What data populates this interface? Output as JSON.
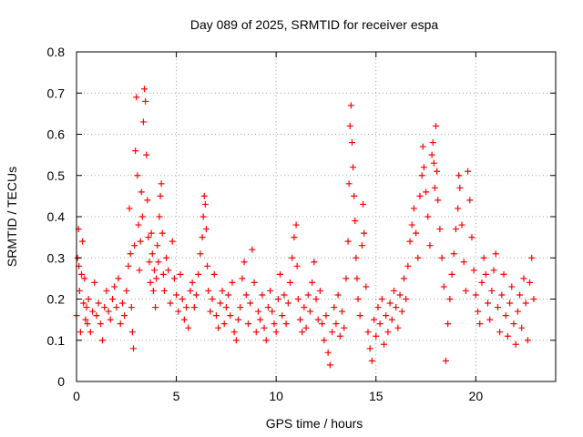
{
  "chart_data": {
    "type": "scatter",
    "title": "Day 089 of 2025, SRMTID for receiver espa",
    "xlabel": "GPS time / hours",
    "ylabel": "SRMTID / TECUs",
    "xlim": [
      0,
      24
    ],
    "ylim": [
      0,
      0.8
    ],
    "grid": true,
    "marker": "+",
    "color": "#ff0000",
    "x_ticks": [
      0,
      5,
      10,
      15,
      20
    ],
    "x_tick_labels": [
      "0",
      "5",
      "10",
      "15",
      "20"
    ],
    "y_ticks": [
      0,
      0.1,
      0.2,
      0.3,
      0.4,
      0.5,
      0.6,
      0.7,
      0.8
    ],
    "y_tick_labels": [
      "0",
      "0.1",
      "0.2",
      "0.3",
      "0.4",
      "0.5",
      "0.6",
      "0.7",
      "0.8"
    ],
    "series": [
      {
        "name": "SRMTID",
        "points": [
          [
            0.0,
            0.16
          ],
          [
            0.05,
            0.3
          ],
          [
            0.1,
            0.37
          ],
          [
            0.12,
            0.28
          ],
          [
            0.15,
            0.22
          ],
          [
            0.2,
            0.12
          ],
          [
            0.25,
            0.26
          ],
          [
            0.3,
            0.34
          ],
          [
            0.35,
            0.19
          ],
          [
            0.4,
            0.25
          ],
          [
            0.45,
            0.15
          ],
          [
            0.5,
            0.18
          ],
          [
            0.55,
            0.14
          ],
          [
            0.6,
            0.2
          ],
          [
            0.7,
            0.12
          ],
          [
            0.8,
            0.17
          ],
          [
            0.9,
            0.24
          ],
          [
            1.0,
            0.16
          ],
          [
            1.1,
            0.19
          ],
          [
            1.2,
            0.14
          ],
          [
            1.3,
            0.1
          ],
          [
            1.4,
            0.18
          ],
          [
            1.5,
            0.22
          ],
          [
            1.6,
            0.17
          ],
          [
            1.7,
            0.15
          ],
          [
            1.8,
            0.2
          ],
          [
            1.9,
            0.23
          ],
          [
            2.0,
            0.18
          ],
          [
            2.1,
            0.25
          ],
          [
            2.2,
            0.14
          ],
          [
            2.3,
            0.19
          ],
          [
            2.4,
            0.16
          ],
          [
            2.5,
            0.22
          ],
          [
            2.6,
            0.28
          ],
          [
            2.65,
            0.42
          ],
          [
            2.7,
            0.31
          ],
          [
            2.75,
            0.18
          ],
          [
            2.8,
            0.12
          ],
          [
            2.85,
            0.08
          ],
          [
            2.9,
            0.33
          ],
          [
            2.95,
            0.56
          ],
          [
            3.0,
            0.69
          ],
          [
            3.05,
            0.5
          ],
          [
            3.1,
            0.38
          ],
          [
            3.15,
            0.27
          ],
          [
            3.2,
            0.34
          ],
          [
            3.25,
            0.46
          ],
          [
            3.3,
            0.4
          ],
          [
            3.35,
            0.63
          ],
          [
            3.4,
            0.71
          ],
          [
            3.45,
            0.68
          ],
          [
            3.5,
            0.55
          ],
          [
            3.55,
            0.44
          ],
          [
            3.6,
            0.35
          ],
          [
            3.65,
            0.29
          ],
          [
            3.7,
            0.24
          ],
          [
            3.75,
            0.36
          ],
          [
            3.8,
            0.31
          ],
          [
            3.85,
            0.22
          ],
          [
            3.9,
            0.27
          ],
          [
            3.95,
            0.18
          ],
          [
            4.0,
            0.25
          ],
          [
            4.05,
            0.33
          ],
          [
            4.1,
            0.29
          ],
          [
            4.15,
            0.4
          ],
          [
            4.2,
            0.45
          ],
          [
            4.25,
            0.48
          ],
          [
            4.3,
            0.36
          ],
          [
            4.35,
            0.26
          ],
          [
            4.4,
            0.22
          ],
          [
            4.5,
            0.3
          ],
          [
            4.6,
            0.27
          ],
          [
            4.7,
            0.19
          ],
          [
            4.8,
            0.34
          ],
          [
            4.9,
            0.25
          ],
          [
            5.0,
            0.21
          ],
          [
            5.1,
            0.17
          ],
          [
            5.2,
            0.26
          ],
          [
            5.3,
            0.2
          ],
          [
            5.4,
            0.15
          ],
          [
            5.5,
            0.18
          ],
          [
            5.6,
            0.13
          ],
          [
            5.7,
            0.22
          ],
          [
            5.8,
            0.24
          ],
          [
            5.9,
            0.18
          ],
          [
            6.0,
            0.21
          ],
          [
            6.1,
            0.26
          ],
          [
            6.2,
            0.31
          ],
          [
            6.3,
            0.35
          ],
          [
            6.35,
            0.4
          ],
          [
            6.4,
            0.45
          ],
          [
            6.45,
            0.43
          ],
          [
            6.5,
            0.37
          ],
          [
            6.55,
            0.28
          ],
          [
            6.6,
            0.22
          ],
          [
            6.7,
            0.17
          ],
          [
            6.8,
            0.2
          ],
          [
            6.9,
            0.26
          ],
          [
            7.0,
            0.16
          ],
          [
            7.1,
            0.13
          ],
          [
            7.2,
            0.19
          ],
          [
            7.3,
            0.22
          ],
          [
            7.4,
            0.14
          ],
          [
            7.5,
            0.18
          ],
          [
            7.6,
            0.21
          ],
          [
            7.7,
            0.16
          ],
          [
            7.8,
            0.24
          ],
          [
            7.9,
            0.12
          ],
          [
            8.0,
            0.1
          ],
          [
            8.1,
            0.15
          ],
          [
            8.2,
            0.18
          ],
          [
            8.3,
            0.25
          ],
          [
            8.4,
            0.29
          ],
          [
            8.5,
            0.21
          ],
          [
            8.6,
            0.14
          ],
          [
            8.7,
            0.19
          ],
          [
            8.8,
            0.32
          ],
          [
            8.9,
            0.24
          ],
          [
            9.0,
            0.12
          ],
          [
            9.1,
            0.17
          ],
          [
            9.2,
            0.15
          ],
          [
            9.3,
            0.21
          ],
          [
            9.4,
            0.13
          ],
          [
            9.5,
            0.1
          ],
          [
            9.6,
            0.18
          ],
          [
            9.7,
            0.22
          ],
          [
            9.8,
            0.17
          ],
          [
            9.9,
            0.14
          ],
          [
            10.0,
            0.12
          ],
          [
            10.1,
            0.2
          ],
          [
            10.2,
            0.26
          ],
          [
            10.3,
            0.16
          ],
          [
            10.4,
            0.21
          ],
          [
            10.5,
            0.14
          ],
          [
            10.6,
            0.19
          ],
          [
            10.7,
            0.24
          ],
          [
            10.8,
            0.3
          ],
          [
            10.9,
            0.35
          ],
          [
            11.0,
            0.38
          ],
          [
            11.05,
            0.28
          ],
          [
            11.1,
            0.2
          ],
          [
            11.2,
            0.15
          ],
          [
            11.3,
            0.12
          ],
          [
            11.4,
            0.18
          ],
          [
            11.5,
            0.13
          ],
          [
            11.6,
            0.21
          ],
          [
            11.7,
            0.17
          ],
          [
            11.8,
            0.24
          ],
          [
            11.9,
            0.29
          ],
          [
            12.0,
            0.2
          ],
          [
            12.1,
            0.15
          ],
          [
            12.2,
            0.22
          ],
          [
            12.3,
            0.14
          ],
          [
            12.4,
            0.1
          ],
          [
            12.5,
            0.16
          ],
          [
            12.6,
            0.07
          ],
          [
            12.7,
            0.04
          ],
          [
            12.8,
            0.12
          ],
          [
            12.9,
            0.18
          ],
          [
            13.0,
            0.14
          ],
          [
            13.1,
            0.21
          ],
          [
            13.2,
            0.11
          ],
          [
            13.3,
            0.17
          ],
          [
            13.4,
            0.13
          ],
          [
            13.5,
            0.25
          ],
          [
            13.6,
            0.34
          ],
          [
            13.65,
            0.48
          ],
          [
            13.7,
            0.62
          ],
          [
            13.75,
            0.67
          ],
          [
            13.8,
            0.58
          ],
          [
            13.85,
            0.52
          ],
          [
            13.9,
            0.45
          ],
          [
            13.95,
            0.39
          ],
          [
            14.0,
            0.3
          ],
          [
            14.05,
            0.25
          ],
          [
            14.1,
            0.2
          ],
          [
            14.2,
            0.16
          ],
          [
            14.3,
            0.33
          ],
          [
            14.35,
            0.43
          ],
          [
            14.4,
            0.36
          ],
          [
            14.5,
            0.23
          ],
          [
            14.6,
            0.12
          ],
          [
            14.7,
            0.08
          ],
          [
            14.8,
            0.05
          ],
          [
            14.9,
            0.15
          ],
          [
            15.0,
            0.11
          ],
          [
            15.1,
            0.18
          ],
          [
            15.2,
            0.14
          ],
          [
            15.3,
            0.2
          ],
          [
            15.4,
            0.09
          ],
          [
            15.5,
            0.16
          ],
          [
            15.6,
            0.12
          ],
          [
            15.7,
            0.19
          ],
          [
            15.8,
            0.15
          ],
          [
            15.9,
            0.22
          ],
          [
            16.0,
            0.18
          ],
          [
            16.1,
            0.13
          ],
          [
            16.2,
            0.21
          ],
          [
            16.3,
            0.17
          ],
          [
            16.4,
            0.25
          ],
          [
            16.5,
            0.2
          ],
          [
            16.6,
            0.28
          ],
          [
            16.7,
            0.34
          ],
          [
            16.8,
            0.38
          ],
          [
            16.9,
            0.42
          ],
          [
            17.0,
            0.36
          ],
          [
            17.1,
            0.3
          ],
          [
            17.2,
            0.45
          ],
          [
            17.3,
            0.5
          ],
          [
            17.35,
            0.57
          ],
          [
            17.4,
            0.52
          ],
          [
            17.5,
            0.46
          ],
          [
            17.6,
            0.4
          ],
          [
            17.7,
            0.33
          ],
          [
            17.8,
            0.55
          ],
          [
            17.85,
            0.58
          ],
          [
            17.9,
            0.53
          ],
          [
            17.95,
            0.47
          ],
          [
            18.0,
            0.62
          ],
          [
            18.05,
            0.51
          ],
          [
            18.1,
            0.44
          ],
          [
            18.2,
            0.37
          ],
          [
            18.3,
            0.3
          ],
          [
            18.4,
            0.23
          ],
          [
            18.5,
            0.05
          ],
          [
            18.6,
            0.14
          ],
          [
            18.7,
            0.2
          ],
          [
            18.8,
            0.26
          ],
          [
            18.9,
            0.31
          ],
          [
            19.0,
            0.37
          ],
          [
            19.1,
            0.42
          ],
          [
            19.15,
            0.5
          ],
          [
            19.2,
            0.47
          ],
          [
            19.3,
            0.38
          ],
          [
            19.4,
            0.29
          ],
          [
            19.5,
            0.22
          ],
          [
            19.6,
            0.51
          ],
          [
            19.7,
            0.44
          ],
          [
            19.8,
            0.35
          ],
          [
            19.9,
            0.27
          ],
          [
            20.0,
            0.21
          ],
          [
            20.1,
            0.17
          ],
          [
            20.2,
            0.14
          ],
          [
            20.3,
            0.24
          ],
          [
            20.4,
            0.3
          ],
          [
            20.5,
            0.26
          ],
          [
            20.6,
            0.19
          ],
          [
            20.7,
            0.15
          ],
          [
            20.8,
            0.22
          ],
          [
            20.9,
            0.27
          ],
          [
            21.0,
            0.31
          ],
          [
            21.1,
            0.18
          ],
          [
            21.2,
            0.12
          ],
          [
            21.3,
            0.21
          ],
          [
            21.4,
            0.26
          ],
          [
            21.5,
            0.16
          ],
          [
            21.6,
            0.11
          ],
          [
            21.7,
            0.19
          ],
          [
            21.8,
            0.23
          ],
          [
            21.9,
            0.14
          ],
          [
            22.0,
            0.09
          ],
          [
            22.1,
            0.17
          ],
          [
            22.2,
            0.21
          ],
          [
            22.3,
            0.13
          ],
          [
            22.4,
            0.25
          ],
          [
            22.5,
            0.19
          ],
          [
            22.6,
            0.1
          ],
          [
            22.7,
            0.24
          ],
          [
            22.8,
            0.3
          ],
          [
            22.9,
            0.2
          ]
        ]
      }
    ]
  }
}
